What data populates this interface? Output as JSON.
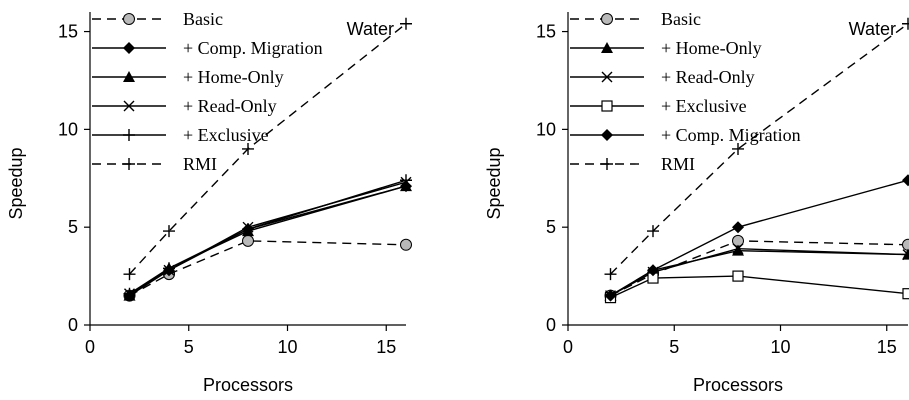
{
  "chart_data": [
    {
      "type": "line",
      "annotation": "Water",
      "xlabel": "Processors",
      "ylabel": "Speedup",
      "xlim": [
        0,
        16
      ],
      "ylim": [
        0,
        16
      ],
      "xticks": [
        0,
        5,
        10,
        15
      ],
      "yticks": [
        0,
        5,
        10,
        15
      ],
      "grid": false,
      "legend_position": "top-left",
      "series": [
        {
          "name": "Basic",
          "marker": "circle",
          "dash": true,
          "x": [
            2,
            4,
            8,
            16
          ],
          "values": [
            1.5,
            2.6,
            4.3,
            4.1
          ]
        },
        {
          "name": "+ Comp. Migration",
          "marker": "diamond",
          "dash": false,
          "x": [
            2,
            4,
            8,
            16
          ],
          "values": [
            1.5,
            2.8,
            4.9,
            7.1
          ]
        },
        {
          "name": "+ Home-Only",
          "marker": "triangle",
          "dash": false,
          "x": [
            2,
            4,
            8,
            16
          ],
          "values": [
            1.5,
            2.9,
            4.8,
            7.1
          ]
        },
        {
          "name": "+ Read-Only",
          "marker": "cross",
          "dash": false,
          "x": [
            2,
            4,
            8,
            16
          ],
          "values": [
            1.6,
            2.8,
            5.0,
            7.3
          ]
        },
        {
          "name": "+ Exclusive",
          "marker": "plus",
          "dash": false,
          "x": [
            2,
            4,
            8,
            16
          ],
          "values": [
            1.6,
            2.9,
            4.9,
            7.4
          ]
        },
        {
          "name": "RMI",
          "marker": "plus",
          "dash": true,
          "x": [
            2,
            4,
            8,
            16
          ],
          "values": [
            2.6,
            4.8,
            9.0,
            15.4
          ]
        }
      ]
    },
    {
      "type": "line",
      "annotation": "Water",
      "xlabel": "Processors",
      "ylabel": "Speedup",
      "xlim": [
        0,
        16
      ],
      "ylim": [
        0,
        16
      ],
      "xticks": [
        0,
        5,
        10,
        15
      ],
      "yticks": [
        0,
        5,
        10,
        15
      ],
      "grid": false,
      "legend_position": "top-left",
      "series": [
        {
          "name": "Basic",
          "marker": "circle",
          "dash": true,
          "x": [
            2,
            4,
            8,
            16
          ],
          "values": [
            1.5,
            2.6,
            4.3,
            4.1
          ]
        },
        {
          "name": "+ Home-Only",
          "marker": "triangle",
          "dash": false,
          "x": [
            2,
            4,
            8,
            16
          ],
          "values": [
            1.5,
            2.8,
            3.8,
            3.6
          ]
        },
        {
          "name": "+ Read-Only",
          "marker": "cross",
          "dash": false,
          "x": [
            2,
            4,
            8,
            16
          ],
          "values": [
            1.5,
            2.7,
            3.9,
            3.6
          ]
        },
        {
          "name": "+ Exclusive",
          "marker": "square",
          "dash": false,
          "x": [
            2,
            4,
            8,
            16
          ],
          "values": [
            1.4,
            2.4,
            2.5,
            1.6
          ]
        },
        {
          "name": "+ Comp. Migration",
          "marker": "diamond",
          "dash": false,
          "x": [
            2,
            4,
            8,
            16
          ],
          "values": [
            1.5,
            2.8,
            5.0,
            7.4
          ]
        },
        {
          "name": "RMI",
          "marker": "plus",
          "dash": true,
          "x": [
            2,
            4,
            8,
            16
          ],
          "values": [
            2.6,
            4.8,
            9.0,
            15.4
          ]
        }
      ]
    }
  ]
}
